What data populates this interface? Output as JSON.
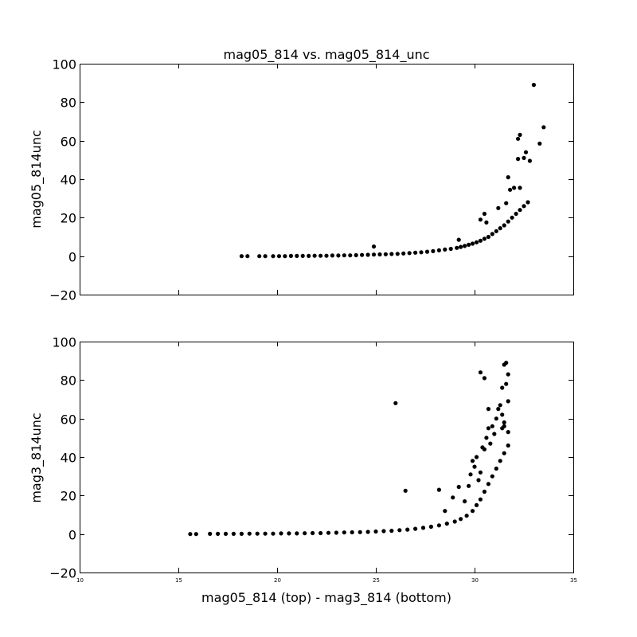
{
  "chart_data": {
    "type": "scatter",
    "title": "mag05_814 vs. mag05_814_unc",
    "xlabel": "mag05_814 (top) - mag3_814 (bottom)",
    "xlim": [
      10,
      35
    ],
    "xticks": [
      "10",
      "15",
      "20",
      "25",
      "30",
      "35"
    ],
    "grid": false,
    "panels": [
      {
        "ylabel": "mag05_814unc",
        "ylim": [
          -20,
          100
        ],
        "yticks": [
          "−20",
          "0",
          "20",
          "40",
          "60",
          "80",
          "100"
        ],
        "series": [
          {
            "x": [
              18.2,
              18.5,
              19.1,
              19.4,
              19.8,
              20.1,
              20.4,
              20.7,
              21.0,
              21.3,
              21.6,
              21.9,
              22.2,
              22.5,
              22.8,
              23.1,
              23.4,
              23.7,
              24.0,
              24.3,
              24.6,
              24.9,
              25.2,
              25.5,
              25.8,
              26.1,
              26.4,
              26.7,
              27.0,
              27.3,
              27.6,
              27.9,
              28.2,
              28.5,
              28.8,
              29.1,
              29.3,
              29.5,
              29.7,
              29.9,
              30.1,
              30.3,
              30.5,
              30.7,
              30.9,
              31.1,
              31.3,
              31.5,
              31.7,
              31.9,
              32.1,
              32.3,
              32.5,
              32.7,
              24.9,
              29.2,
              30.5,
              30.3,
              30.6,
              31.2,
              31.6,
              31.8,
              32.0,
              32.3,
              31.7,
              32.2,
              32.5,
              32.6,
              32.8,
              32.2,
              32.3,
              33.3,
              33.5,
              33.0
            ],
            "y": [
              0.0,
              0.0,
              0.0,
              0.0,
              0.0,
              0.0,
              0.0,
              0.1,
              0.1,
              0.1,
              0.1,
              0.2,
              0.2,
              0.2,
              0.3,
              0.3,
              0.4,
              0.4,
              0.5,
              0.6,
              0.7,
              0.8,
              0.9,
              1.0,
              1.1,
              1.2,
              1.4,
              1.6,
              1.8,
              2.0,
              2.3,
              2.6,
              3.0,
              3.4,
              3.8,
              4.3,
              4.8,
              5.3,
              5.9,
              6.5,
              7.2,
              8.0,
              9.0,
              10.0,
              11.5,
              13.0,
              14.5,
              16.0,
              18.0,
              20.0,
              22.0,
              24.0,
              26.0,
              28.0,
              5.0,
              8.5,
              22.0,
              19.0,
              17.5,
              25.0,
              27.5,
              34.5,
              35.5,
              35.5,
              41.0,
              50.5,
              51.0,
              54.0,
              49.5,
              61.0,
              63.0,
              58.5,
              67.0,
              89.0
            ]
          }
        ]
      },
      {
        "ylabel": "mag3_814unc",
        "ylim": [
          -20,
          100
        ],
        "yticks": [
          "−20",
          "0",
          "20",
          "40",
          "60",
          "80",
          "100"
        ],
        "series": [
          {
            "x": [
              15.6,
              15.9,
              16.6,
              17.0,
              17.4,
              17.8,
              18.2,
              18.6,
              19.0,
              19.4,
              19.8,
              20.2,
              20.6,
              21.0,
              21.4,
              21.8,
              22.2,
              22.6,
              23.0,
              23.4,
              23.8,
              24.2,
              24.6,
              25.0,
              25.4,
              25.8,
              26.2,
              26.6,
              27.0,
              27.4,
              27.8,
              28.2,
              28.6,
              29.0,
              29.3,
              29.6,
              29.9,
              30.1,
              30.3,
              30.5,
              30.7,
              30.9,
              31.1,
              31.3,
              31.5,
              31.7,
              26.0,
              26.5,
              28.2,
              28.5,
              28.9,
              29.2,
              29.5,
              29.7,
              29.8,
              29.9,
              30.0,
              30.1,
              30.2,
              30.3,
              30.4,
              30.5,
              30.6,
              30.7,
              30.8,
              30.9,
              31.0,
              31.1,
              31.2,
              31.3,
              31.4,
              31.5,
              31.6,
              31.7,
              30.3,
              30.5,
              30.7,
              31.4,
              31.5,
              31.6,
              31.7,
              31.7,
              31.4,
              31.5
            ],
            "y": [
              0.0,
              0.0,
              0.1,
              0.1,
              0.1,
              0.1,
              0.1,
              0.2,
              0.2,
              0.2,
              0.2,
              0.3,
              0.3,
              0.3,
              0.4,
              0.5,
              0.5,
              0.6,
              0.7,
              0.8,
              0.9,
              1.0,
              1.1,
              1.3,
              1.5,
              1.7,
              2.0,
              2.3,
              2.7,
              3.2,
              3.8,
              4.5,
              5.4,
              6.5,
              7.8,
              9.5,
              12.0,
              15.0,
              18.0,
              22.0,
              26.0,
              30.0,
              34.0,
              38.0,
              42.0,
              46.0,
              68.0,
              22.5,
              23.0,
              12.0,
              19.0,
              24.5,
              17.0,
              25.0,
              31.0,
              38.0,
              35.0,
              40.0,
              28.0,
              32.0,
              45.0,
              44.0,
              50.0,
              55.0,
              47.0,
              56.0,
              52.0,
              60.0,
              65.0,
              67.0,
              55.0,
              56.0,
              78.0,
              83.0,
              84.0,
              81.0,
              65.0,
              76.0,
              88.0,
              89.0,
              53.0,
              69.0,
              62.0,
              58.0
            ]
          }
        ]
      }
    ]
  }
}
